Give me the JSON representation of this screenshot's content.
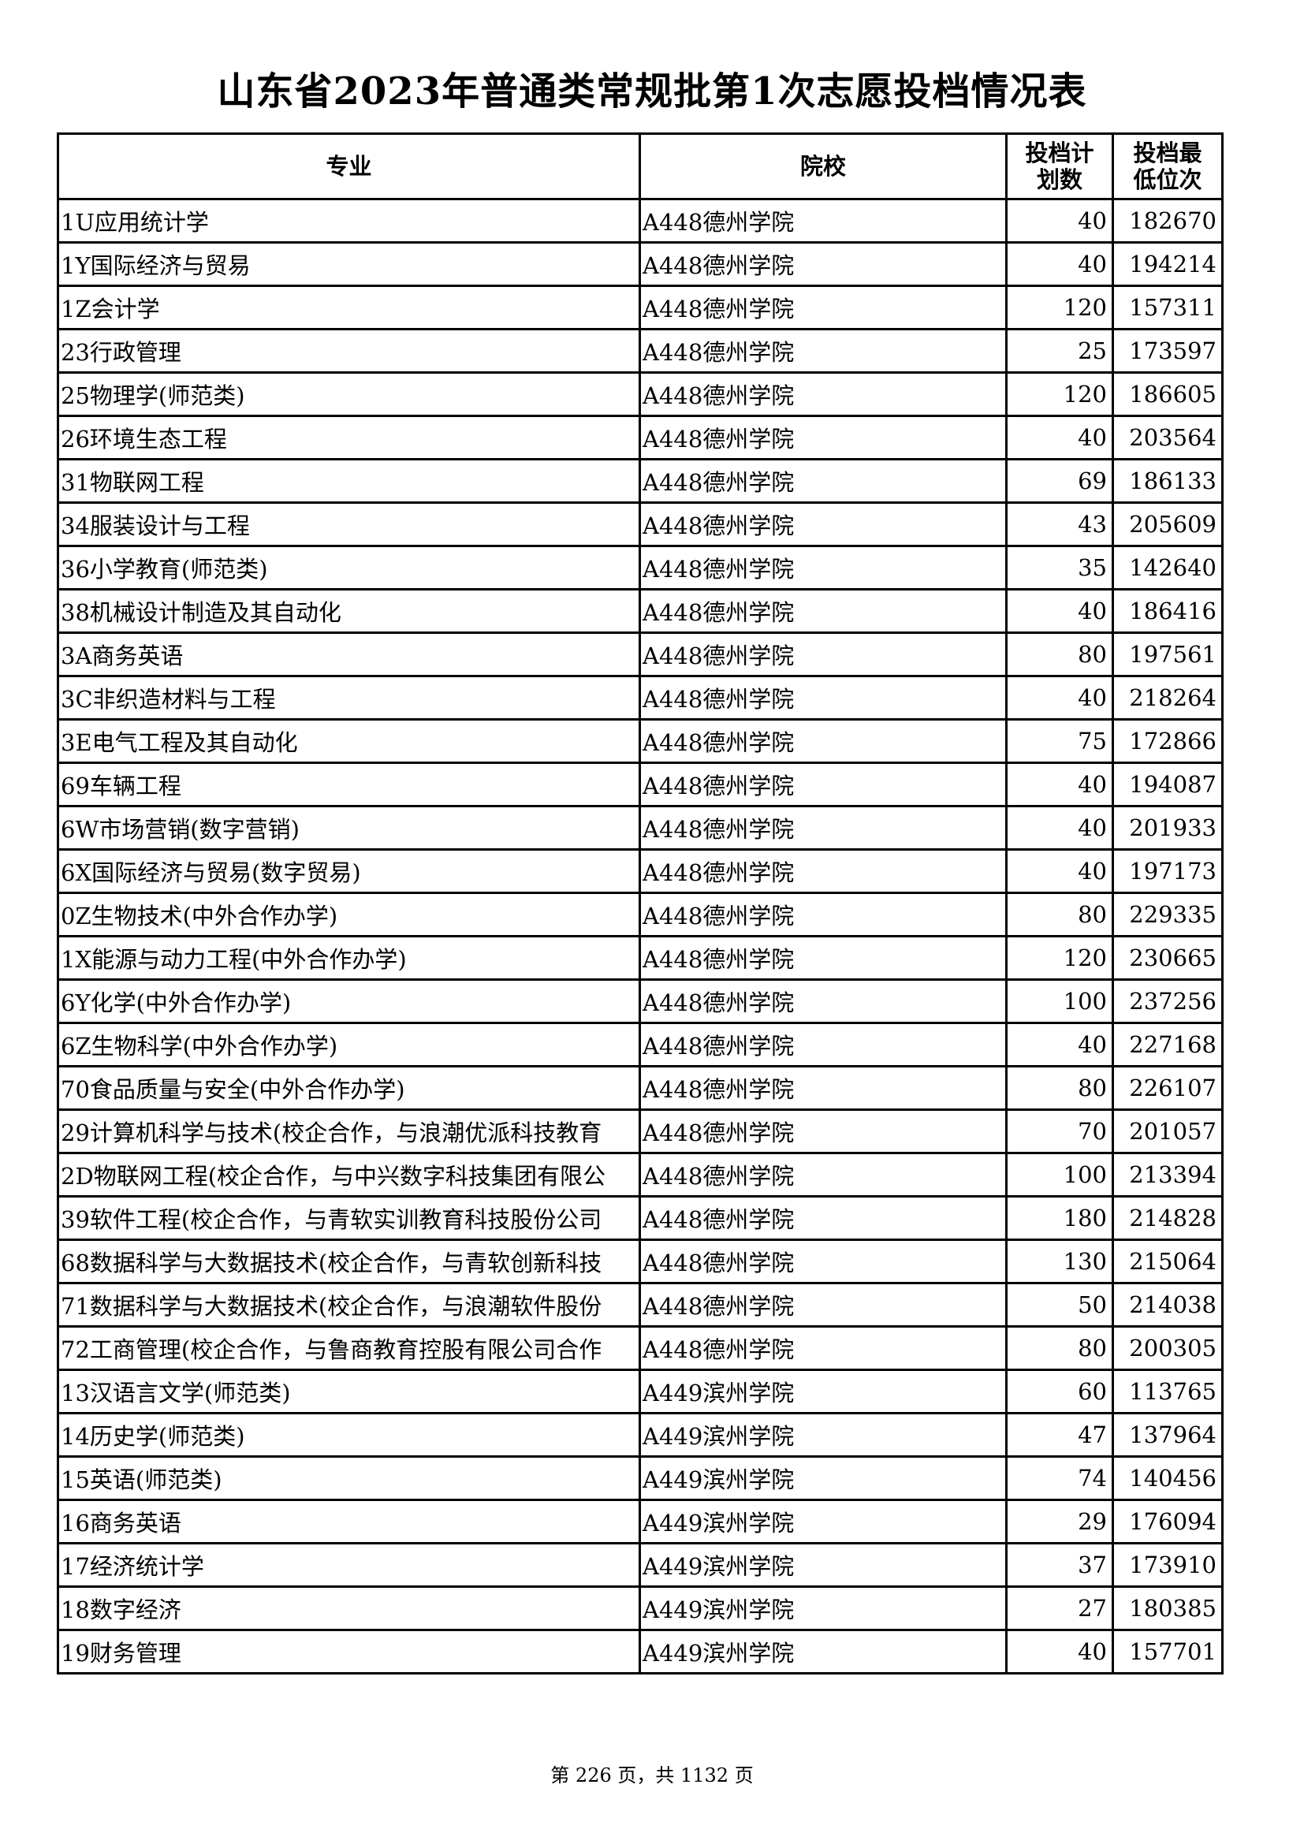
{
  "title": "山东省2023年普通类常规批第1次志愿投档情况表",
  "columns": [
    "专业",
    "院校",
    "投档计划数",
    "投档最低位次"
  ],
  "column_lines": {
    "plan": [
      "投档计",
      "划数"
    ],
    "rank": [
      "投档最",
      "低位次"
    ]
  },
  "rows": [
    {
      "major": "1U应用统计学",
      "school": "A448德州学院",
      "plan": "40",
      "rank": "182670"
    },
    {
      "major": "1Y国际经济与贸易",
      "school": "A448德州学院",
      "plan": "40",
      "rank": "194214"
    },
    {
      "major": "1Z会计学",
      "school": "A448德州学院",
      "plan": "120",
      "rank": "157311"
    },
    {
      "major": "23行政管理",
      "school": "A448德州学院",
      "plan": "25",
      "rank": "173597"
    },
    {
      "major": "25物理学(师范类)",
      "school": "A448德州学院",
      "plan": "120",
      "rank": "186605"
    },
    {
      "major": "26环境生态工程",
      "school": "A448德州学院",
      "plan": "40",
      "rank": "203564"
    },
    {
      "major": "31物联网工程",
      "school": "A448德州学院",
      "plan": "69",
      "rank": "186133"
    },
    {
      "major": "34服装设计与工程",
      "school": "A448德州学院",
      "plan": "43",
      "rank": "205609"
    },
    {
      "major": "36小学教育(师范类)",
      "school": "A448德州学院",
      "plan": "35",
      "rank": "142640"
    },
    {
      "major": "38机械设计制造及其自动化",
      "school": "A448德州学院",
      "plan": "40",
      "rank": "186416"
    },
    {
      "major": "3A商务英语",
      "school": "A448德州学院",
      "plan": "80",
      "rank": "197561"
    },
    {
      "major": "3C非织造材料与工程",
      "school": "A448德州学院",
      "plan": "40",
      "rank": "218264"
    },
    {
      "major": "3E电气工程及其自动化",
      "school": "A448德州学院",
      "plan": "75",
      "rank": "172866"
    },
    {
      "major": "69车辆工程",
      "school": "A448德州学院",
      "plan": "40",
      "rank": "194087"
    },
    {
      "major": "6W市场营销(数字营销)",
      "school": "A448德州学院",
      "plan": "40",
      "rank": "201933"
    },
    {
      "major": "6X国际经济与贸易(数字贸易)",
      "school": "A448德州学院",
      "plan": "40",
      "rank": "197173"
    },
    {
      "major": "0Z生物技术(中外合作办学)",
      "school": "A448德州学院",
      "plan": "80",
      "rank": "229335"
    },
    {
      "major": "1X能源与动力工程(中外合作办学)",
      "school": "A448德州学院",
      "plan": "120",
      "rank": "230665"
    },
    {
      "major": "6Y化学(中外合作办学)",
      "school": "A448德州学院",
      "plan": "100",
      "rank": "237256"
    },
    {
      "major": "6Z生物科学(中外合作办学)",
      "school": "A448德州学院",
      "plan": "40",
      "rank": "227168"
    },
    {
      "major": "70食品质量与安全(中外合作办学)",
      "school": "A448德州学院",
      "plan": "80",
      "rank": "226107"
    },
    {
      "major": "29计算机科学与技术(校企合作，与浪潮优派科技教育",
      "school": "A448德州学院",
      "plan": "70",
      "rank": "201057"
    },
    {
      "major": "2D物联网工程(校企合作，与中兴数字科技集团有限公",
      "school": "A448德州学院",
      "plan": "100",
      "rank": "213394"
    },
    {
      "major": "39软件工程(校企合作，与青软实训教育科技股份公司",
      "school": "A448德州学院",
      "plan": "180",
      "rank": "214828"
    },
    {
      "major": "68数据科学与大数据技术(校企合作，与青软创新科技",
      "school": "A448德州学院",
      "plan": "130",
      "rank": "215064"
    },
    {
      "major": "71数据科学与大数据技术(校企合作，与浪潮软件股份",
      "school": "A448德州学院",
      "plan": "50",
      "rank": "214038"
    },
    {
      "major": "72工商管理(校企合作，与鲁商教育控股有限公司合作",
      "school": "A448德州学院",
      "plan": "80",
      "rank": "200305"
    },
    {
      "major": "13汉语言文学(师范类)",
      "school": "A449滨州学院",
      "plan": "60",
      "rank": "113765"
    },
    {
      "major": "14历史学(师范类)",
      "school": "A449滨州学院",
      "plan": "47",
      "rank": "137964"
    },
    {
      "major": "15英语(师范类)",
      "school": "A449滨州学院",
      "plan": "74",
      "rank": "140456"
    },
    {
      "major": "16商务英语",
      "school": "A449滨州学院",
      "plan": "29",
      "rank": "176094"
    },
    {
      "major": "17经济统计学",
      "school": "A449滨州学院",
      "plan": "37",
      "rank": "173910"
    },
    {
      "major": "18数字经济",
      "school": "A449滨州学院",
      "plan": "27",
      "rank": "180385"
    },
    {
      "major": "19财务管理",
      "school": "A449滨州学院",
      "plan": "40",
      "rank": "157701"
    }
  ],
  "footer": "第 226 页，共 1132 页"
}
